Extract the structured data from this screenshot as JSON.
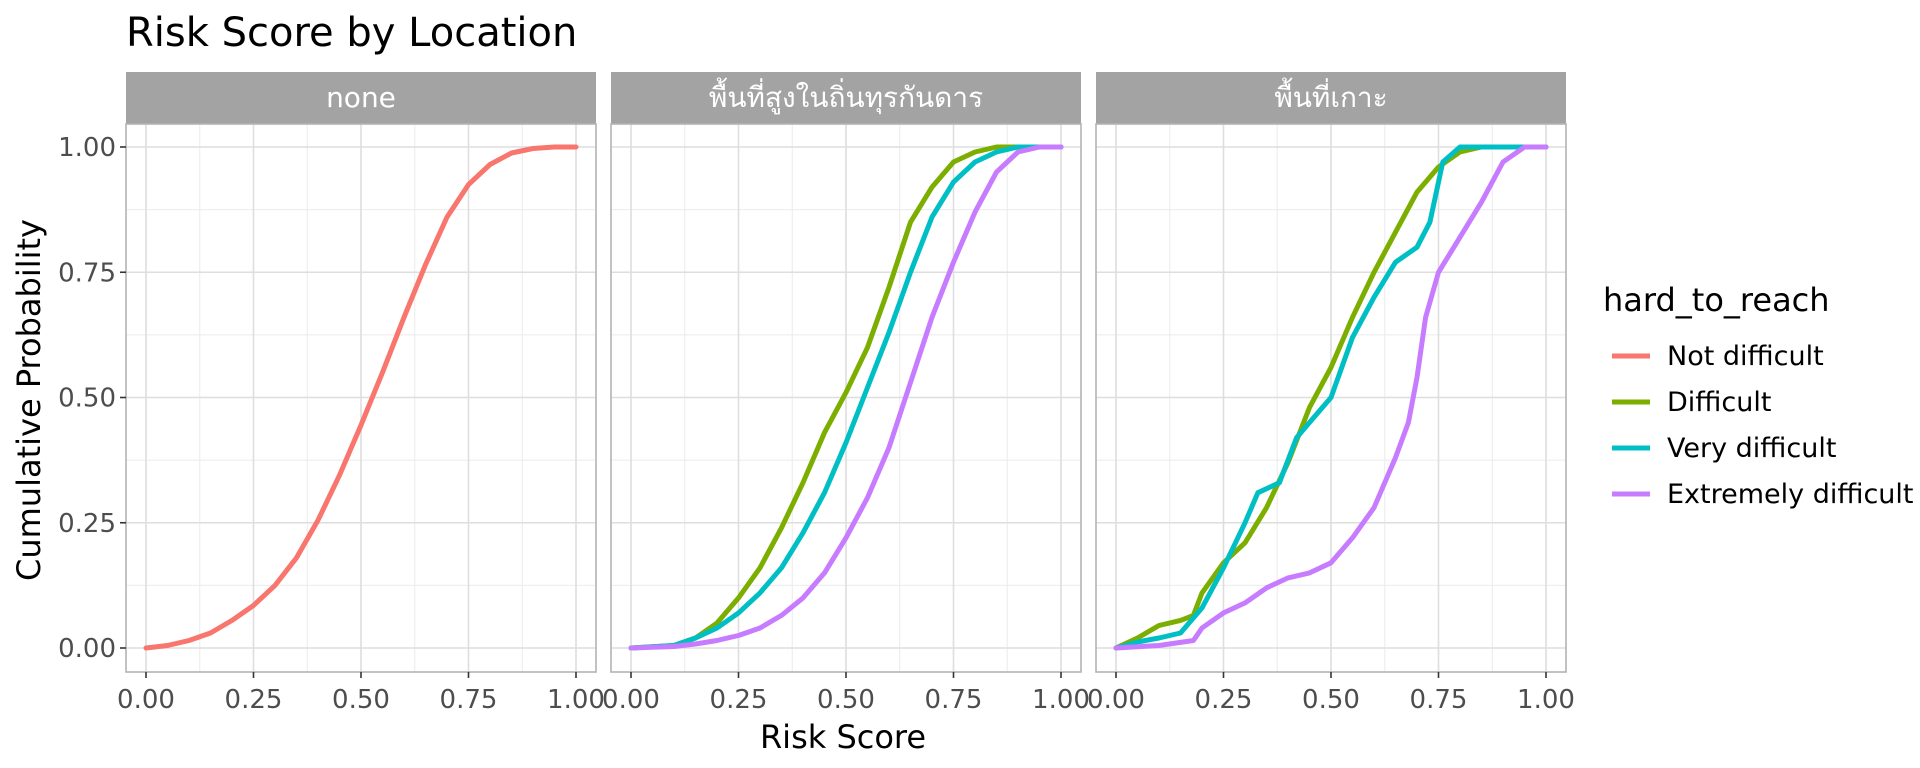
{
  "chart_data": {
    "type": "line",
    "title": "Risk Score by Location",
    "xlabel": "Risk Score",
    "ylabel": "Cumulative Probability",
    "xlim": [
      0,
      1
    ],
    "ylim": [
      0,
      1
    ],
    "x_ticks": [
      "0.00",
      "0.25",
      "0.50",
      "0.75",
      "1.00"
    ],
    "y_ticks": [
      "0.00",
      "0.25",
      "0.50",
      "0.75",
      "1.00"
    ],
    "grid": true,
    "legend": {
      "title": "hard_to_reach",
      "position": "right",
      "entries": [
        {
          "name": "Not difficult",
          "color": "#F8766D"
        },
        {
          "name": "Difficult",
          "color": "#7CAE00"
        },
        {
          "name": "Very difficult",
          "color": "#00BFC4"
        },
        {
          "name": "Extremely difficult",
          "color": "#C77CFF"
        }
      ]
    },
    "panels": [
      {
        "label": "none",
        "series": [
          {
            "name": "Not difficult",
            "color": "#F8766D",
            "x": [
              0.0,
              0.05,
              0.1,
              0.15,
              0.2,
              0.25,
              0.3,
              0.35,
              0.4,
              0.45,
              0.5,
              0.55,
              0.6,
              0.65,
              0.7,
              0.75,
              0.8,
              0.85,
              0.9,
              0.95,
              1.0
            ],
            "y": [
              0.0,
              0.005,
              0.015,
              0.03,
              0.055,
              0.085,
              0.125,
              0.18,
              0.255,
              0.345,
              0.445,
              0.55,
              0.66,
              0.765,
              0.86,
              0.925,
              0.965,
              0.988,
              0.997,
              1.0,
              1.0
            ]
          }
        ]
      },
      {
        "label": "พื้นที่สูงในถิ่นทุรกันดาร",
        "series": [
          {
            "name": "Difficult",
            "color": "#7CAE00",
            "x": [
              0.0,
              0.1,
              0.15,
              0.2,
              0.25,
              0.3,
              0.35,
              0.4,
              0.45,
              0.5,
              0.55,
              0.6,
              0.65,
              0.7,
              0.75,
              0.8,
              0.85,
              0.9,
              0.95,
              1.0
            ],
            "y": [
              0.0,
              0.005,
              0.02,
              0.05,
              0.1,
              0.16,
              0.24,
              0.33,
              0.43,
              0.51,
              0.6,
              0.72,
              0.85,
              0.92,
              0.97,
              0.99,
              1.0,
              1.0,
              1.0,
              1.0
            ]
          },
          {
            "name": "Very difficult",
            "color": "#00BFC4",
            "x": [
              0.0,
              0.1,
              0.15,
              0.2,
              0.25,
              0.3,
              0.35,
              0.4,
              0.45,
              0.5,
              0.55,
              0.6,
              0.65,
              0.7,
              0.75,
              0.8,
              0.85,
              0.9,
              0.95,
              1.0
            ],
            "y": [
              0.0,
              0.005,
              0.02,
              0.04,
              0.07,
              0.11,
              0.16,
              0.23,
              0.31,
              0.41,
              0.52,
              0.63,
              0.75,
              0.86,
              0.93,
              0.97,
              0.99,
              1.0,
              1.0,
              1.0
            ]
          },
          {
            "name": "Extremely difficult",
            "color": "#C77CFF",
            "x": [
              0.0,
              0.1,
              0.15,
              0.2,
              0.25,
              0.3,
              0.35,
              0.4,
              0.45,
              0.5,
              0.55,
              0.6,
              0.65,
              0.7,
              0.75,
              0.8,
              0.85,
              0.9,
              0.95,
              1.0
            ],
            "y": [
              0.0,
              0.003,
              0.008,
              0.015,
              0.025,
              0.04,
              0.065,
              0.1,
              0.15,
              0.22,
              0.3,
              0.4,
              0.53,
              0.66,
              0.77,
              0.87,
              0.95,
              0.99,
              1.0,
              1.0
            ]
          }
        ]
      },
      {
        "label": "พื้นที่เกาะ",
        "series": [
          {
            "name": "Difficult",
            "color": "#7CAE00",
            "x": [
              0.0,
              0.05,
              0.1,
              0.15,
              0.18,
              0.2,
              0.25,
              0.3,
              0.35,
              0.4,
              0.45,
              0.5,
              0.55,
              0.6,
              0.65,
              0.7,
              0.75,
              0.8,
              0.85,
              0.9,
              1.0
            ],
            "y": [
              0.0,
              0.02,
              0.045,
              0.055,
              0.065,
              0.11,
              0.17,
              0.21,
              0.28,
              0.37,
              0.48,
              0.56,
              0.66,
              0.75,
              0.83,
              0.91,
              0.96,
              0.99,
              1.0,
              1.0,
              1.0
            ]
          },
          {
            "name": "Very difficult",
            "color": "#00BFC4",
            "x": [
              0.0,
              0.05,
              0.1,
              0.15,
              0.2,
              0.25,
              0.3,
              0.33,
              0.38,
              0.42,
              0.45,
              0.5,
              0.55,
              0.6,
              0.65,
              0.7,
              0.73,
              0.76,
              0.8,
              0.85,
              1.0
            ],
            "y": [
              0.0,
              0.012,
              0.02,
              0.03,
              0.08,
              0.16,
              0.25,
              0.31,
              0.33,
              0.42,
              0.45,
              0.5,
              0.62,
              0.7,
              0.77,
              0.8,
              0.85,
              0.97,
              1.0,
              1.0,
              1.0
            ]
          },
          {
            "name": "Extremely difficult",
            "color": "#C77CFF",
            "x": [
              0.0,
              0.1,
              0.18,
              0.2,
              0.25,
              0.3,
              0.35,
              0.4,
              0.45,
              0.5,
              0.55,
              0.6,
              0.65,
              0.68,
              0.7,
              0.72,
              0.75,
              0.8,
              0.85,
              0.9,
              0.95,
              1.0
            ],
            "y": [
              0.0,
              0.005,
              0.015,
              0.04,
              0.07,
              0.09,
              0.12,
              0.14,
              0.15,
              0.17,
              0.22,
              0.28,
              0.38,
              0.45,
              0.54,
              0.66,
              0.75,
              0.82,
              0.89,
              0.97,
              1.0,
              1.0
            ]
          }
        ]
      }
    ]
  }
}
